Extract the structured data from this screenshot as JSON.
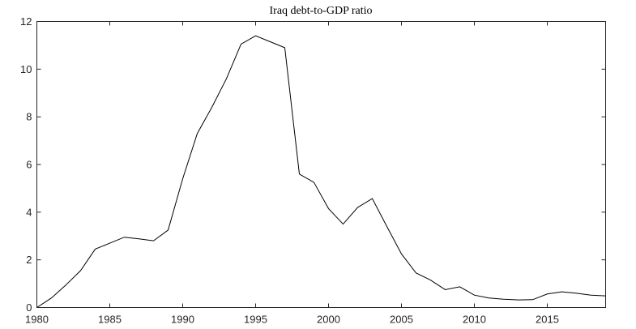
{
  "chart_data": {
    "type": "line",
    "title": "Iraq debt-to-GDP ratio",
    "xlabel": "",
    "ylabel": "",
    "xlim": [
      1980,
      2019
    ],
    "ylim": [
      0,
      12
    ],
    "xticks": [
      1980,
      1985,
      1990,
      1995,
      2000,
      2005,
      2010,
      2015
    ],
    "yticks": [
      0,
      2,
      4,
      6,
      8,
      10,
      12
    ],
    "grid": false,
    "series": [
      {
        "name": "Iraq debt-to-GDP ratio",
        "x": [
          1980,
          1981,
          1982,
          1983,
          1984,
          1985,
          1986,
          1987,
          1988,
          1989,
          1990,
          1991,
          1992,
          1993,
          1994,
          1995,
          1996,
          1997,
          1998,
          1999,
          2000,
          2001,
          2002,
          2003,
          2004,
          2005,
          2006,
          2007,
          2008,
          2009,
          2010,
          2011,
          2012,
          2013,
          2014,
          2015,
          2016,
          2017,
          2018,
          2019
        ],
        "y": [
          0.0,
          0.4,
          0.95,
          1.55,
          2.45,
          2.7,
          2.95,
          2.88,
          2.8,
          3.25,
          5.4,
          7.3,
          8.4,
          9.6,
          11.05,
          11.4,
          11.15,
          10.9,
          5.6,
          5.25,
          4.15,
          3.5,
          4.2,
          4.57,
          3.4,
          2.25,
          1.45,
          1.15,
          0.75,
          0.87,
          0.52,
          0.4,
          0.35,
          0.32,
          0.33,
          0.57,
          0.66,
          0.6,
          0.52,
          0.49
        ]
      }
    ]
  }
}
